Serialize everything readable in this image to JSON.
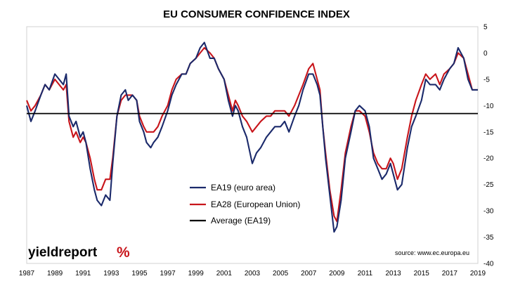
{
  "chart_data": {
    "type": "line",
    "title": "EU CONSUMER CONFIDENCE INDEX",
    "xlabel": "",
    "ylabel": "",
    "x_tick_labels": [
      "1987",
      "1989",
      "1991",
      "1993",
      "1995",
      "1997",
      "1999",
      "2001",
      "2003",
      "2005",
      "2007",
      "2009",
      "2011",
      "2013",
      "2015",
      "2017",
      "2019"
    ],
    "xlim": [
      1987,
      2019
    ],
    "ylim": [
      -40,
      5
    ],
    "y_ticks": [
      5,
      0,
      -5,
      -10,
      -15,
      -20,
      -25,
      -30,
      -35,
      -40
    ],
    "y_axis_side": "right",
    "grid": false,
    "legend_position": "center-left",
    "source": "source: www.ec.europa.eu",
    "logo": {
      "text": "yieldreport",
      "symbol": "%"
    },
    "series": [
      {
        "name": "EA19 (euro area)",
        "color": "#1b2a6b",
        "x": [
          1987.0,
          1987.3,
          1987.6,
          1988.0,
          1988.3,
          1988.6,
          1989.0,
          1989.3,
          1989.6,
          1989.8,
          1990.0,
          1990.3,
          1990.5,
          1990.8,
          1991.0,
          1991.2,
          1991.5,
          1991.8,
          1992.0,
          1992.3,
          1992.6,
          1992.9,
          1993.1,
          1993.4,
          1993.7,
          1994.0,
          1994.2,
          1994.5,
          1994.8,
          1995.0,
          1995.3,
          1995.5,
          1995.8,
          1996.0,
          1996.3,
          1996.6,
          1997.0,
          1997.3,
          1997.6,
          1998.0,
          1998.3,
          1998.6,
          1999.0,
          1999.3,
          1999.6,
          2000.0,
          2000.3,
          2000.6,
          2001.0,
          2001.3,
          2001.6,
          2001.8,
          2002.0,
          2002.3,
          2002.6,
          2003.0,
          2003.3,
          2003.6,
          2004.0,
          2004.3,
          2004.6,
          2005.0,
          2005.3,
          2005.6,
          2006.0,
          2006.3,
          2006.6,
          2007.0,
          2007.3,
          2007.6,
          2007.8,
          2008.0,
          2008.2,
          2008.5,
          2008.8,
          2009.0,
          2009.3,
          2009.6,
          2010.0,
          2010.3,
          2010.6,
          2011.0,
          2011.3,
          2011.6,
          2011.9,
          2012.2,
          2012.5,
          2012.8,
          2013.0,
          2013.3,
          2013.6,
          2014.0,
          2014.3,
          2014.6,
          2015.0,
          2015.3,
          2015.6,
          2016.0,
          2016.3,
          2016.6,
          2017.0,
          2017.3,
          2017.6,
          2018.0,
          2018.3,
          2018.6,
          2019.0
        ],
        "values": [
          -10,
          -13,
          -11,
          -8,
          -6,
          -7,
          -4,
          -5,
          -6,
          -4,
          -12,
          -14,
          -13,
          -16,
          -15,
          -17,
          -22,
          -26,
          -28,
          -29,
          -27,
          -28,
          -21,
          -12,
          -8,
          -7,
          -9,
          -8,
          -9,
          -13,
          -15,
          -17,
          -18,
          -17,
          -16,
          -14,
          -11,
          -8,
          -6,
          -4,
          -4,
          -2,
          -1,
          1,
          2,
          -1,
          -1,
          -3,
          -5,
          -9,
          -12,
          -10,
          -11,
          -14,
          -16,
          -21,
          -19,
          -18,
          -16,
          -15,
          -14,
          -14,
          -13,
          -15,
          -12,
          -10,
          -7,
          -4,
          -4,
          -6,
          -8,
          -14,
          -20,
          -27,
          -34,
          -33,
          -28,
          -20,
          -15,
          -11,
          -10,
          -11,
          -14,
          -20,
          -22,
          -24,
          -23,
          -21,
          -23,
          -26,
          -25,
          -18,
          -14,
          -12,
          -9,
          -5,
          -6,
          -6,
          -7,
          -5,
          -3,
          -2,
          1,
          -1,
          -5,
          -7,
          -7
        ]
      },
      {
        "name": "EA28 (European Union)",
        "color": "#c8151b",
        "x": [
          1987.0,
          1987.3,
          1987.6,
          1988.0,
          1988.3,
          1988.6,
          1989.0,
          1989.3,
          1989.6,
          1989.8,
          1990.0,
          1990.3,
          1990.5,
          1990.8,
          1991.0,
          1991.2,
          1991.5,
          1991.8,
          1992.0,
          1992.3,
          1992.6,
          1992.9,
          1993.1,
          1993.4,
          1993.7,
          1994.0,
          1994.2,
          1994.5,
          1994.8,
          1995.0,
          1995.3,
          1995.5,
          1995.8,
          1996.0,
          1996.3,
          1996.6,
          1997.0,
          1997.3,
          1997.6,
          1998.0,
          1998.3,
          1998.6,
          1999.0,
          1999.3,
          1999.6,
          2000.0,
          2000.3,
          2000.6,
          2001.0,
          2001.3,
          2001.6,
          2001.8,
          2002.0,
          2002.3,
          2002.6,
          2003.0,
          2003.3,
          2003.6,
          2004.0,
          2004.3,
          2004.6,
          2005.0,
          2005.3,
          2005.6,
          2006.0,
          2006.3,
          2006.6,
          2007.0,
          2007.3,
          2007.6,
          2007.8,
          2008.0,
          2008.2,
          2008.5,
          2008.8,
          2009.0,
          2009.3,
          2009.6,
          2010.0,
          2010.3,
          2010.6,
          2011.0,
          2011.3,
          2011.6,
          2011.9,
          2012.2,
          2012.5,
          2012.8,
          2013.0,
          2013.3,
          2013.6,
          2014.0,
          2014.3,
          2014.6,
          2015.0,
          2015.3,
          2015.6,
          2016.0,
          2016.3,
          2016.6,
          2017.0,
          2017.3,
          2017.6,
          2018.0,
          2018.3,
          2018.6,
          2019.0
        ],
        "values": [
          -9,
          -11,
          -10,
          -8,
          -6,
          -7,
          -5,
          -6,
          -7,
          -6,
          -13,
          -16,
          -15,
          -17,
          -16,
          -17,
          -20,
          -24,
          -26,
          -26,
          -24,
          -24,
          -20,
          -12,
          -9,
          -8,
          -8,
          -8,
          -9,
          -12,
          -14,
          -15,
          -15,
          -15,
          -14,
          -12,
          -10,
          -7,
          -5,
          -4,
          -4,
          -2,
          -1,
          0,
          1,
          0,
          -1,
          -3,
          -5,
          -8,
          -11,
          -9,
          -10,
          -12,
          -13,
          -15,
          -14,
          -13,
          -12,
          -12,
          -11,
          -11,
          -11,
          -12,
          -10,
          -8,
          -6,
          -3,
          -2,
          -5,
          -7,
          -14,
          -19,
          -26,
          -31,
          -32,
          -26,
          -19,
          -14,
          -11,
          -11,
          -12,
          -15,
          -19,
          -21,
          -22,
          -22,
          -20,
          -21,
          -24,
          -22,
          -16,
          -12,
          -9,
          -6,
          -4,
          -5,
          -4,
          -6,
          -4,
          -3,
          -2,
          0,
          -1,
          -4,
          -7,
          -7
        ]
      },
      {
        "name": "Average (EA19)",
        "color": "#000000",
        "x": [
          1987,
          2019
        ],
        "values": [
          -11.5,
          -11.5
        ]
      }
    ]
  }
}
